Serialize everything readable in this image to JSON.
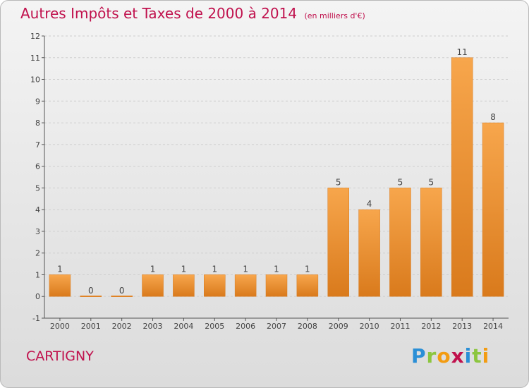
{
  "title": "Autres Impôts et Taxes de 2000 à 2014",
  "subtitle": "(en milliers d'€)",
  "location": "CARTIGNY",
  "logo": {
    "letters": [
      {
        "char": "P",
        "color": "#2a8fd6"
      },
      {
        "char": "r",
        "color": "#8cc63f"
      },
      {
        "char": "o",
        "color": "#f39c12"
      },
      {
        "char": "x",
        "color": "#c0114d"
      },
      {
        "char": "i",
        "color": "#2a8fd6"
      },
      {
        "char": "t",
        "color": "#8cc63f"
      },
      {
        "char": "i",
        "color": "#f39c12"
      }
    ]
  },
  "colors": {
    "accent": "#c0114d",
    "bar_light": "#f7a64c",
    "bar_dark": "#d97a1c",
    "axis": "#555555",
    "grid": "#cfcfcf"
  },
  "chart_data": {
    "type": "bar",
    "categories": [
      "2000",
      "2001",
      "2002",
      "2003",
      "2004",
      "2005",
      "2006",
      "2007",
      "2008",
      "2009",
      "2010",
      "2011",
      "2012",
      "2013",
      "2014"
    ],
    "values": [
      1,
      0,
      0,
      1,
      1,
      1,
      1,
      1,
      1,
      5,
      4,
      5,
      5,
      11,
      8
    ],
    "data_labels": [
      "1",
      "0",
      "0",
      "1",
      "1",
      "1",
      "1",
      "1",
      "1",
      "5",
      "4",
      "5",
      "5",
      "11",
      "8"
    ],
    "ylim": [
      -1,
      12
    ],
    "yticks": [
      -1,
      0,
      1,
      2,
      3,
      4,
      5,
      6,
      7,
      8,
      9,
      10,
      11,
      12
    ],
    "grid": "horizontal dashed",
    "xlabel": "",
    "ylabel": ""
  }
}
